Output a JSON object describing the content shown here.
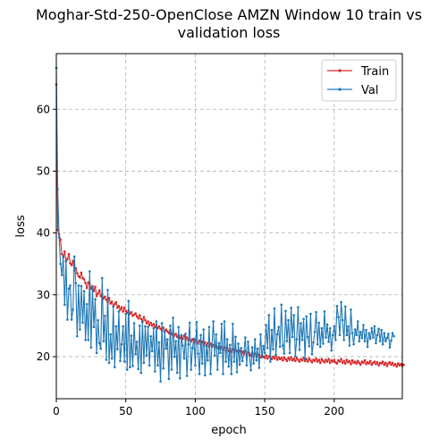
{
  "chart_data": {
    "type": "line",
    "title_lines": [
      "Moghar-Std-250-OpenClose AMZN Window 10 train vs",
      "validation loss"
    ],
    "xlabel": "epoch",
    "ylabel": "loss",
    "xlim": [
      0,
      249
    ],
    "ylim": [
      13.2,
      69.0
    ],
    "x_ticks": [
      0,
      50,
      100,
      150,
      200
    ],
    "y_ticks": [
      20,
      30,
      40,
      50,
      60
    ],
    "grid": true,
    "legend_position": "top-right",
    "series": [
      {
        "name": "Train",
        "color": "#d62728",
        "values": [
          64.0,
          40.5,
          39.8,
          38.9,
          36.6,
          36.1,
          37.0,
          35.4,
          35.8,
          36.6,
          35.1,
          34.8,
          35.5,
          33.9,
          34.3,
          33.5,
          33.0,
          32.8,
          33.6,
          32.7,
          32.5,
          31.9,
          31.1,
          32.0,
          31.8,
          31.0,
          31.4,
          30.6,
          31.3,
          29.8,
          30.2,
          30.7,
          29.8,
          30.1,
          29.4,
          29.7,
          29.2,
          28.8,
          29.5,
          28.6,
          28.9,
          28.1,
          28.5,
          28.8,
          27.9,
          28.2,
          27.6,
          28.0,
          27.3,
          27.9,
          27.4,
          27.1,
          27.5,
          26.9,
          27.2,
          26.6,
          26.8,
          27.0,
          26.5,
          26.2,
          26.7,
          26.1,
          25.8,
          26.4,
          25.9,
          25.4,
          25.7,
          25.1,
          25.5,
          25.0,
          25.3,
          24.8,
          25.2,
          24.6,
          24.9,
          24.5,
          24.2,
          24.7,
          24.0,
          24.4,
          24.1,
          23.8,
          24.3,
          23.6,
          23.9,
          23.4,
          23.7,
          23.2,
          23.5,
          23.0,
          23.3,
          22.9,
          23.4,
          22.8,
          23.1,
          22.6,
          22.9,
          22.5,
          22.8,
          22.3,
          22.7,
          22.4,
          22.1,
          22.6,
          22.0,
          22.4,
          21.9,
          22.3,
          21.8,
          22.2,
          21.7,
          22.1,
          21.6,
          21.9,
          21.5,
          21.8,
          21.4,
          21.7,
          21.2,
          21.6,
          21.1,
          21.5,
          21.0,
          21.4,
          20.9,
          21.3,
          20.8,
          21.2,
          20.7,
          21.1,
          20.9,
          20.6,
          21.0,
          20.5,
          20.8,
          20.4,
          20.9,
          20.3,
          20.7,
          20.5,
          20.2,
          20.6,
          20.1,
          20.5,
          20.0,
          20.4,
          20.2,
          19.9,
          20.3,
          20.0,
          19.8,
          20.2,
          19.7,
          20.1,
          19.9,
          19.6,
          20.0,
          19.7,
          20.1,
          19.5,
          19.9,
          19.6,
          19.8,
          19.4,
          19.9,
          19.6,
          19.3,
          19.8,
          19.5,
          19.9,
          19.4,
          19.7,
          19.3,
          19.8,
          19.5,
          19.2,
          19.6,
          19.4,
          19.8,
          19.3,
          19.6,
          19.2,
          19.7,
          19.4,
          19.1,
          19.5,
          19.3,
          19.7,
          19.2,
          19.5,
          19.0,
          19.6,
          19.3,
          19.1,
          19.5,
          19.2,
          19.6,
          19.0,
          19.4,
          19.2,
          19.5,
          19.1,
          18.9,
          19.4,
          19.2,
          19.6,
          19.0,
          19.3,
          18.9,
          19.5,
          19.1,
          19.3,
          18.8,
          19.4,
          19.0,
          19.2,
          18.9,
          19.3,
          19.0,
          18.7,
          19.2,
          19.0,
          19.4,
          18.8,
          19.1,
          18.9,
          19.3,
          18.7,
          19.0,
          19.2,
          18.8,
          19.1,
          18.6,
          19.0,
          18.9,
          19.2,
          18.7,
          19.0,
          18.5,
          18.9,
          19.1,
          18.7,
          19.0,
          18.6,
          18.8,
          18.4,
          18.9,
          18.6,
          18.8,
          18.5,
          18.7
        ]
      },
      {
        "name": "Val",
        "color": "#1f77b4",
        "values": [
          66.7,
          47.1,
          39.3,
          35.0,
          33.2,
          36.2,
          28.4,
          35.5,
          26.0,
          31.0,
          31.5,
          26.0,
          27.6,
          36.2,
          31.9,
          23.3,
          31.5,
          24.4,
          31.4,
          25.5,
          30.6,
          22.7,
          28.5,
          22.7,
          33.8,
          21.5,
          31.2,
          24.8,
          29.3,
          20.6,
          25.9,
          22.2,
          21.3,
          32.7,
          22.5,
          26.6,
          19.5,
          30.8,
          19.0,
          23.6,
          19.7,
          28.1,
          18.3,
          24.9,
          21.2,
          27.3,
          19.3,
          22.0,
          24.9,
          19.2,
          26.9,
          17.9,
          29.0,
          18.3,
          23.4,
          18.5,
          25.4,
          20.4,
          22.4,
          18.0,
          25.0,
          17.4,
          25.6,
          19.0,
          24.9,
          20.2,
          24.8,
          18.6,
          23.3,
          20.9,
          24.6,
          17.6,
          25.7,
          18.6,
          22.3,
          16.0,
          25.4,
          18.1,
          24.1,
          21.3,
          22.8,
          16.4,
          25.0,
          17.9,
          26.3,
          20.0,
          22.5,
          17.4,
          24.8,
          16.5,
          23.5,
          21.8,
          19.7,
          23.7,
          16.9,
          22.0,
          25.5,
          17.9,
          21.4,
          22.9,
          18.6,
          25.6,
          20.5,
          17.2,
          23.5,
          18.9,
          24.4,
          17.0,
          21.7,
          19.4,
          24.8,
          17.2,
          21.9,
          25.7,
          20.2,
          23.6,
          17.9,
          22.2,
          20.6,
          25.3,
          17.2,
          25.7,
          19.2,
          22.8,
          18.4,
          21.9,
          17.2,
          25.3,
          19.2,
          23.2,
          17.5,
          22.1,
          18.7,
          21.4,
          19.3,
          20.8,
          23.1,
          18.6,
          22.4,
          20.2,
          17.8,
          21.5,
          18.9,
          22.8,
          19.4,
          21.3,
          18.2,
          23.6,
          19.9,
          21.7,
          20.6,
          25.1,
          21.4,
          26.7,
          19.2,
          24.3,
          21.2,
          27.8,
          20.3,
          23.6,
          24.8,
          21.6,
          28.4,
          21.8,
          20.5,
          27.4,
          22.5,
          25.9,
          20.6,
          27.9,
          23.2,
          26.7,
          20.1,
          22.8,
          28.0,
          21.1,
          25.4,
          22.7,
          26.1,
          19.6,
          26.5,
          23.2,
          21.7,
          26.9,
          20.4,
          22.3,
          24.0,
          27.2,
          22.0,
          25.5,
          21.6,
          24.6,
          22.1,
          27.3,
          23.1,
          25.2,
          22.4,
          24.6,
          21.0,
          23.5,
          24.9,
          22.7,
          28.2,
          26.4,
          23.5,
          28.8,
          25.9,
          22.7,
          28.1,
          23.5,
          24.9,
          21.8,
          27.6,
          23.8,
          22.0,
          24.4,
          23.5,
          25.7,
          22.5,
          24.0,
          23.0,
          25.1,
          22.5,
          24.3,
          21.6,
          23.8,
          22.9,
          24.6,
          23.1,
          24.9,
          22.2,
          23.5,
          24.5,
          22.5,
          24.3,
          22.0,
          23.8,
          22.5,
          23.0,
          23.7,
          21.5,
          22.6,
          23.8,
          23.3
        ]
      }
    ]
  }
}
